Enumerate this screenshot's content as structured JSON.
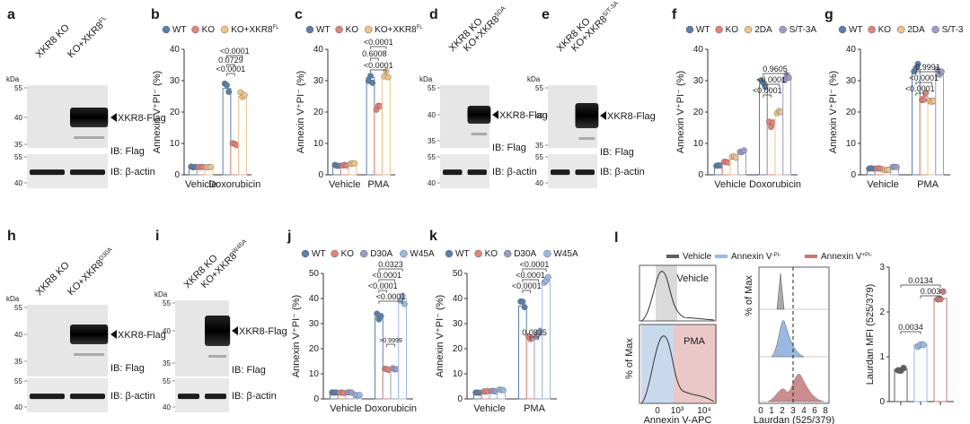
{
  "colors": {
    "WT": "#5b7fa8",
    "KO": "#e0827a",
    "RESCUE": "#edc48a",
    "S": "#9d9cc8",
    "V": "#5e5e5e",
    "AP": "#9bb9e0",
    "AN": "#c27a7a"
  },
  "panel_labels": [
    "a",
    "b",
    "c",
    "d",
    "e",
    "f",
    "g",
    "h",
    "i",
    "j",
    "k",
    "l"
  ],
  "blot_text": {
    "xko": "XKR8 KO",
    "ko_fl": "KO+XKR8",
    "ko_d": "KO+XKR8",
    "ko_e": "KO+XKR8",
    "ko_h": "KO+XKR8",
    "ko_i": "KO+XKR8",
    "sup_fl": "FL",
    "sup_d": "5DA",
    "sup_e": "S/T-3A",
    "sup_h": "D30A",
    "sup_i": "W45A",
    "flag_band": "XKR8-Flag",
    "ib_flag": "IB: Flag",
    "ib_actin": "IB: β-actin",
    "kda": "kDa",
    "mw_top": [
      "55",
      "40",
      "35"
    ],
    "mw_bot": [
      "55",
      "40"
    ]
  },
  "sig": {
    "b": [
      "<0.0001",
      "0.0729",
      "<0.0001"
    ],
    "c": [
      "<0.0001",
      "0.6008",
      "<0.0001"
    ],
    "f": [
      "0.9605",
      "<0.0001",
      "<0.0001"
    ],
    "g": [
      "0.9991",
      "<0.0001",
      "<0.0001"
    ],
    "j": [
      "0.0323",
      "<0.0001",
      "<0.0001",
      "<0.0001",
      ">0.9999"
    ],
    "k": [
      "<0.0001",
      "<0.0001",
      "<0.0001",
      "0.0835"
    ],
    "l": [
      "0.0134",
      "0.003",
      "0.0034"
    ]
  },
  "flow_text": {
    "legend": [
      "Vehicle",
      "Annexin V",
      "Annexin V"
    ],
    "vehicle": "Vehicle",
    "pma": "PMA",
    "pct_max": "% of Max",
    "x_anx": "Annexin V-APC",
    "x_laur": "Laurdan (525/379)",
    "ticks_anx": [
      "0",
      "10³",
      "10⁴"
    ],
    "ticks_laur": [
      "0",
      "1",
      "2",
      "3",
      "4",
      "6",
      "8"
    ]
  },
  "chart_data": [
    {
      "panel": "b",
      "type": "bar",
      "ylabel": "Annexin V⁺PI⁻ (%)",
      "ylim": [
        0,
        40
      ],
      "yticks": [
        0,
        10,
        20,
        30,
        40
      ],
      "categories": [
        "Vehicle",
        "Doxorubicin"
      ],
      "series": [
        {
          "name": "WT",
          "values": [
            2.5,
            27.5
          ]
        },
        {
          "name": "KO",
          "values": [
            2.5,
            9.5
          ]
        },
        {
          "name": "KO+XKR8FL",
          "values": [
            2.5,
            25
          ]
        }
      ]
    },
    {
      "panel": "c",
      "type": "bar",
      "ylabel": "Annexin V⁺PI⁻ (%)",
      "ylim": [
        0,
        40
      ],
      "yticks": [
        0,
        10,
        20,
        30,
        40
      ],
      "categories": [
        "Vehicle",
        "PMA"
      ],
      "series": [
        {
          "name": "WT",
          "values": [
            3,
            31
          ]
        },
        {
          "name": "KO",
          "values": [
            3,
            22
          ]
        },
        {
          "name": "KO+XKR8FL",
          "values": [
            3.5,
            31.5
          ]
        }
      ]
    },
    {
      "panel": "f",
      "type": "bar",
      "ylabel": "Annexin V⁺PI⁻ (%)",
      "ylim": [
        0,
        40
      ],
      "yticks": [
        0,
        10,
        20,
        30,
        40
      ],
      "categories": [
        "Vehicle",
        "Doxorubicin"
      ],
      "series": [
        {
          "name": "WT",
          "values": [
            3,
            29
          ]
        },
        {
          "name": "KO",
          "values": [
            4,
            16
          ]
        },
        {
          "name": "2DA",
          "values": [
            5.5,
            20
          ]
        },
        {
          "name": "S/T-3A",
          "values": [
            7.5,
            31
          ]
        }
      ]
    },
    {
      "panel": "g",
      "type": "bar",
      "ylabel": "Annexin V⁺PI⁻ (%)",
      "ylim": [
        0,
        40
      ],
      "yticks": [
        0,
        10,
        20,
        30,
        40
      ],
      "categories": [
        "Vehicle",
        "PMA"
      ],
      "series": [
        {
          "name": "WT",
          "values": [
            2,
            33.5
          ]
        },
        {
          "name": "KO",
          "values": [
            2,
            25
          ]
        },
        {
          "name": "2DA",
          "values": [
            1.5,
            22.5
          ]
        },
        {
          "name": "S/T-3",
          "values": [
            2.5,
            32.5
          ]
        }
      ]
    },
    {
      "panel": "j",
      "type": "bar",
      "ylabel": "Annexin V⁺PI⁻ (%)",
      "ylim": [
        0,
        50
      ],
      "yticks": [
        0,
        10,
        20,
        30,
        40,
        50
      ],
      "categories": [
        "Vehicle",
        "Doxorubicin"
      ],
      "series": [
        {
          "name": "WT",
          "values": [
            2.5,
            32.5
          ]
        },
        {
          "name": "KO",
          "values": [
            2.5,
            11.5
          ]
        },
        {
          "name": "D30A",
          "values": [
            2.5,
            12
          ]
        },
        {
          "name": "W45A",
          "values": [
            1.5,
            40
          ]
        }
      ]
    },
    {
      "panel": "k",
      "type": "bar",
      "ylabel": "Annexin V⁺PI⁻ (%)",
      "ylim": [
        0,
        50
      ],
      "yticks": [
        0,
        10,
        20,
        30,
        40,
        50
      ],
      "categories": [
        "Vehicle",
        "PMA"
      ],
      "series": [
        {
          "name": "WT",
          "values": [
            2.5,
            37
          ]
        },
        {
          "name": "KO",
          "values": [
            3,
            25
          ]
        },
        {
          "name": "D30A",
          "values": [
            3,
            26
          ]
        },
        {
          "name": "W45A",
          "values": [
            3.5,
            47
          ]
        }
      ]
    },
    {
      "panel": "l",
      "type": "bar",
      "ylabel": "Laurdan MFI (525/379)",
      "ylim": [
        0,
        3
      ],
      "yticks": [
        0,
        1,
        2,
        3
      ],
      "categories": [
        "Vehicle",
        "Annexin V⁻PI⁻",
        "Annexin V⁺PI⁻"
      ],
      "series": [
        {
          "values": [
            0.72,
            1.28,
            2.3
          ]
        }
      ]
    }
  ]
}
